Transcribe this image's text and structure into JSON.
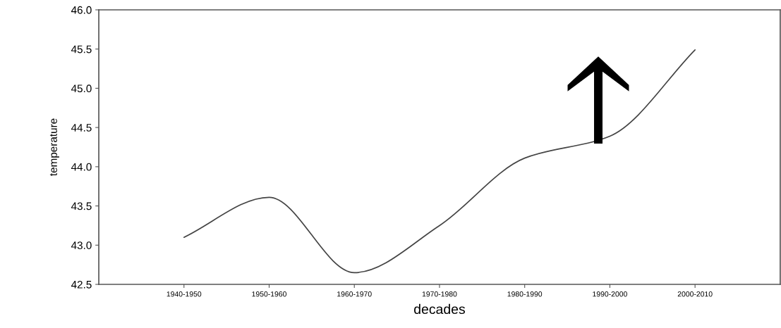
{
  "chart_data": {
    "type": "line",
    "xlabel": "decades",
    "ylabel": "temperature",
    "categories": [
      "1940-1950",
      "1950-1960",
      "1960-1970",
      "1970-1980",
      "1980-1990",
      "1990-2000",
      "2000-2010"
    ],
    "series": [
      {
        "color": "#444444",
        "values": [
          43.1,
          43.61,
          42.65,
          43.25,
          44.11,
          44.39,
          45.49
        ]
      }
    ],
    "ylim": [
      42.5,
      46.0
    ],
    "yticks": [
      42.5,
      {
        "value": 43,
        "label": "43.0"
      },
      43.5,
      {
        "value": 44,
        "label": "44.0"
      },
      44.5,
      {
        "value": 45,
        "label": "45.0"
      },
      45.5,
      {
        "value": 46,
        "label": "46.0"
      }
    ],
    "grid": false,
    "legend": false,
    "marker": "none",
    "line_style": "solid"
  }
}
